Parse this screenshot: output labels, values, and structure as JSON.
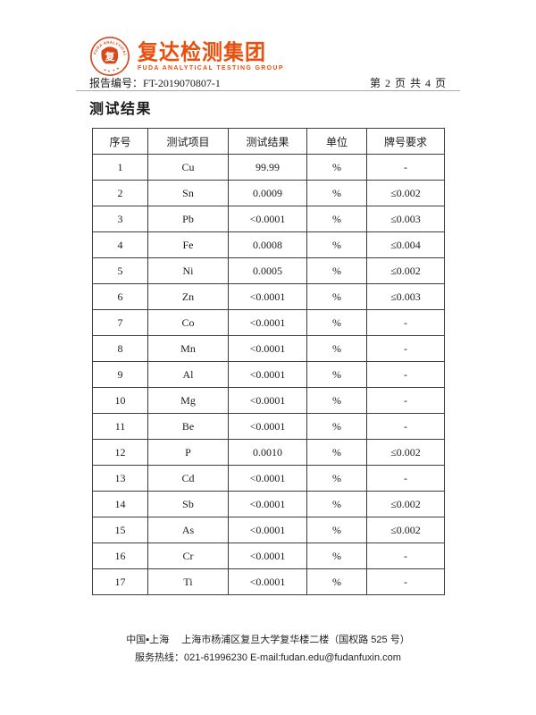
{
  "theme": {
    "accent": "#e8500f",
    "table_border": "#3c3c3c"
  },
  "header": {
    "logo": {
      "company_cn": "复达检测集团",
      "company_en": "FUDA  ANALYTICAL  TESTING  GROUP",
      "seal_arc_text": "FUDA ANALYTICAL TESTING",
      "seal_center_glyph": "复"
    },
    "report_no_label": "报告编号：",
    "report_no_value": "FT-2019070807-1",
    "page_info": "第 2 页 共 4 页"
  },
  "title": "测试结果",
  "table": {
    "columns": [
      "序号",
      "测试项目",
      "测试结果",
      "单位",
      "牌号要求"
    ],
    "column_keys": [
      "no",
      "item",
      "result",
      "unit",
      "requirement"
    ],
    "rows": [
      [
        "1",
        "Cu",
        "99.99",
        "%",
        "-"
      ],
      [
        "2",
        "Sn",
        "0.0009",
        "%",
        "≤0.002"
      ],
      [
        "3",
        "Pb",
        "<0.0001",
        "%",
        "≤0.003"
      ],
      [
        "4",
        "Fe",
        "0.0008",
        "%",
        "≤0.004"
      ],
      [
        "5",
        "Ni",
        "0.0005",
        "%",
        "≤0.002"
      ],
      [
        "6",
        "Zn",
        "<0.0001",
        "%",
        "≤0.003"
      ],
      [
        "7",
        "Co",
        "<0.0001",
        "%",
        "-"
      ],
      [
        "8",
        "Mn",
        "<0.0001",
        "%",
        "-"
      ],
      [
        "9",
        "Al",
        "<0.0001",
        "%",
        "-"
      ],
      [
        "10",
        "Mg",
        "<0.0001",
        "%",
        "-"
      ],
      [
        "11",
        "Be",
        "<0.0001",
        "%",
        "-"
      ],
      [
        "12",
        "P",
        "0.0010",
        "%",
        "≤0.002"
      ],
      [
        "13",
        "Cd",
        "<0.0001",
        "%",
        "-"
      ],
      [
        "14",
        "Sb",
        "<0.0001",
        "%",
        "≤0.002"
      ],
      [
        "15",
        "As",
        "<0.0001",
        "%",
        "≤0.002"
      ],
      [
        "16",
        "Cr",
        "<0.0001",
        "%",
        "-"
      ],
      [
        "17",
        "Ti",
        "<0.0001",
        "%",
        "-"
      ]
    ]
  },
  "footer": {
    "line1": "中国▪上海　 上海市杨浦区复旦大学复华楼二楼（国权路 525 号）",
    "line2": "服务热线：021-61996230 E-mail:fudan.edu@fudanfuxin.com"
  }
}
